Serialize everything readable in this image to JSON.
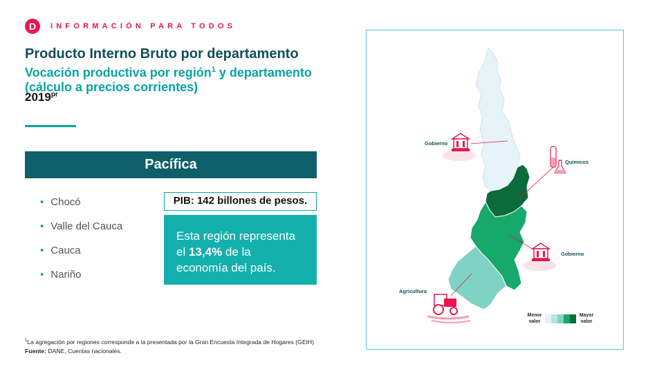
{
  "header": {
    "logo_letter": "D",
    "brand": "INFORMACIÓN PARA TODOS"
  },
  "title": "Producto Interno Bruto por departamento",
  "subtitle_main": "Vocación productiva por región",
  "subtitle_ref": "1",
  "subtitle_rest": " y departamento (cálculo a precios corrientes)",
  "year": "2019",
  "year_suffix": "pr",
  "region": "Pacífica",
  "departments": [
    "Chocó",
    "Valle del Cauca",
    "Cauca",
    "Nariño"
  ],
  "pib_label": "PIB: 142 billones de pesos.",
  "share": {
    "prefix": "Esta región representa el ",
    "value": "13,4%",
    "suffix": " de la economía del país."
  },
  "map": {
    "labels": {
      "choco": "Gobierno",
      "valle": "Químicos",
      "cauca": "Gobierno",
      "narino": "Agricultura"
    },
    "legend": {
      "min": "Menor valor",
      "max": "Mayor valor"
    },
    "colors": {
      "choco": "#e6f4fa",
      "valle": "#0b6b3a",
      "cauca": "#17a86b",
      "narino": "#7fd3c4",
      "icon": "#e8174d"
    }
  },
  "footnote": {
    "ref": "1",
    "text": "La agregación por regiones corresponde a la presentada por la Gran Encuesta Integrada de Hogares (GEIH)",
    "source_label": "Fuente:",
    "source": " DANE, Cuentas nacionales."
  }
}
